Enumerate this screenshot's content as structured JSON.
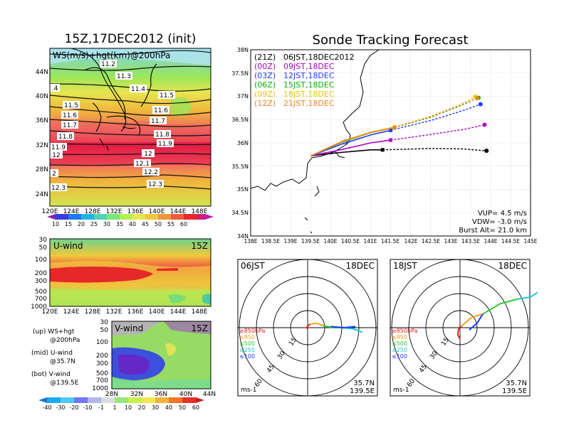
{
  "left": {
    "title": "15Z,17DEC2012 (init)",
    "map": {
      "label": "WS(m/s)+hgt(km)@200hPa",
      "lat_ticks": [
        "44N",
        "40N",
        "36N",
        "32N",
        "28N",
        "24N"
      ],
      "lon_ticks": [
        "120E",
        "124E",
        "128E",
        "132E",
        "136E",
        "140E",
        "144E",
        "148E"
      ],
      "contour_labels": [
        "11.2",
        "11.3",
        "11.4",
        "11.5",
        "11.5",
        "11.6",
        "11.6",
        "11.7",
        "11.7",
        "11.8",
        "11.8",
        "11.9",
        "11.9",
        "12",
        "12",
        "12.1",
        "12.2",
        "12.3",
        "12.3",
        "2",
        ".4"
      ]
    },
    "ws_colorbar": [
      "10",
      "15",
      "20",
      "25",
      "30",
      "35",
      "40",
      "45",
      "50",
      "55",
      "60"
    ],
    "uwind": {
      "label": "U-wind",
      "time": "15Z",
      "y_ticks": [
        "30",
        "50",
        "100",
        "200",
        "300",
        "500",
        "700",
        "1000"
      ],
      "x_ticks": [
        "120E",
        "124E",
        "128E",
        "132E",
        "136E",
        "140E",
        "144E",
        "148E"
      ]
    },
    "vwind": {
      "label": "V-wind",
      "time": "15Z",
      "y_ticks": [
        "30",
        "50",
        "100",
        "200",
        "300",
        "500",
        "700",
        "1000"
      ],
      "x_ticks": [
        "28N",
        "32N",
        "36N",
        "40N",
        "44N"
      ]
    },
    "legend": {
      "up1": "(up) WS+hgt",
      "up2": "@200hPa",
      "mid1": "(mid) U-wind",
      "mid2": "@35.7N",
      "bot1": "(bot) V-wind",
      "bot2": "@139.5E"
    },
    "wind_colorbar": [
      "-40",
      "-30",
      "-20",
      "-10",
      "-1",
      "1",
      "10",
      "20",
      "30",
      "40",
      "50",
      "60"
    ]
  },
  "right": {
    "title": "Sonde Tracking Forecast",
    "track": {
      "y_ticks": [
        "38N",
        "37.5N",
        "37N",
        "36.5N",
        "36N",
        "35.5N",
        "35N",
        "34.5N",
        "34N"
      ],
      "x_ticks": [
        "138E",
        "138.5E",
        "139E",
        "139.5E",
        "140E",
        "140.5E",
        "141E",
        "141.5E",
        "142E",
        "142.5E",
        "143E",
        "143.5E",
        "144E",
        "144.5E",
        "145E"
      ],
      "legend": [
        {
          "code": "(21Z)",
          "time": "06JST,18DEC2012",
          "color": "#000000"
        },
        {
          "code": "(00Z)",
          "time": "09JST,18DEC",
          "color": "#b000c8"
        },
        {
          "code": "(03Z)",
          "time": "12JST,18DEC",
          "color": "#1e3cff"
        },
        {
          "code": "(06Z)",
          "time": "15JST,18DEC",
          "color": "#00b400"
        },
        {
          "code": "(09Z)",
          "time": "18JST,18DEC",
          "color": "#e6c800"
        },
        {
          "code": "(12Z)",
          "time": "21JST,18DEC",
          "color": "#f08228"
        }
      ],
      "vup": "VUP=  4.5 m/s",
      "vdw": "VDW= -3.0 m/s",
      "burst": "Burst Alt= 21.0 km"
    },
    "hodo1": {
      "time": "06JST",
      "date": "18DEC",
      "rings": [
        "15",
        "30",
        "45",
        "60"
      ],
      "levels": [
        "≥850hPa",
        "≤850",
        "≤500",
        "≤250",
        "≤100"
      ],
      "unit": "ms-1",
      "lat": "35.7N",
      "lon": "139.5E"
    },
    "hodo2": {
      "time": "18JST",
      "date": "18DEC",
      "rings": [
        "15",
        "30",
        "45",
        "60"
      ],
      "levels": [
        "≥850hPa",
        "≤850",
        "≤500",
        "≤250",
        "≤100"
      ],
      "unit": "ms-1",
      "lat": "35.7N",
      "lon": "139.5E"
    }
  },
  "chart_data": [
    {
      "type": "heatmap",
      "title": "WS(m/s)+hgt(km)@200hPa",
      "xlim": [
        120,
        150
      ],
      "ylim": [
        21,
        47
      ],
      "contour_levels_km": [
        11.2,
        11.3,
        11.4,
        11.5,
        11.6,
        11.7,
        11.8,
        11.9,
        12.0,
        12.1,
        12.2,
        12.3
      ],
      "colorbar": [
        10,
        15,
        20,
        25,
        30,
        35,
        40,
        45,
        50,
        55,
        60
      ]
    },
    {
      "type": "heatmap",
      "title": "U-wind",
      "xlim": [
        120,
        150
      ],
      "ylevels_hPa": [
        30,
        50,
        100,
        200,
        300,
        500,
        700,
        1000
      ],
      "colorbar": [
        -40,
        -30,
        -20,
        -10,
        -1,
        1,
        10,
        20,
        30,
        40,
        50,
        60
      ]
    },
    {
      "type": "heatmap",
      "title": "V-wind",
      "xlim": [
        28,
        44
      ],
      "ylevels_hPa": [
        30,
        50,
        100,
        200,
        300,
        500,
        700,
        1000
      ]
    },
    {
      "type": "line",
      "title": "Sonde Tracking Forecast",
      "xlim": [
        138,
        145
      ],
      "ylim": [
        34,
        38
      ],
      "series": [
        {
          "name": "(21Z) 06JST,18DEC2012",
          "x": [
            139.5,
            140.2,
            141.0,
            141.3,
            142.5,
            143.3,
            143.9
          ],
          "y": [
            35.72,
            35.79,
            35.85,
            35.85,
            35.88,
            35.87,
            35.83
          ]
        },
        {
          "name": "(00Z) 09JST,18DEC",
          "x": [
            139.5,
            140.3,
            141.0,
            141.5,
            142.5,
            143.4,
            143.85
          ],
          "y": [
            35.72,
            35.86,
            36.0,
            36.06,
            36.18,
            36.3,
            36.39
          ]
        },
        {
          "name": "(03Z) 12JST,18DEC",
          "x": [
            139.5,
            140.3,
            141.0,
            141.5,
            142.5,
            143.3,
            143.75
          ],
          "y": [
            35.72,
            35.98,
            36.17,
            36.27,
            36.48,
            36.69,
            36.83
          ]
        },
        {
          "name": "(06Z) 15JST,18DEC",
          "x": [
            139.5,
            140.3,
            141.0,
            141.6,
            142.5,
            143.2,
            143.7
          ],
          "y": [
            35.72,
            36.02,
            36.22,
            36.33,
            36.55,
            36.78,
            36.97
          ]
        },
        {
          "name": "(09Z) 18JST,18DEC",
          "x": [
            139.5,
            140.3,
            141.0,
            141.6,
            142.5,
            143.2,
            143.62
          ],
          "y": [
            35.72,
            36.04,
            36.23,
            36.34,
            36.57,
            36.8,
            36.99
          ]
        },
        {
          "name": "(12Z) 21JST,18DEC",
          "x": [
            139.5,
            140.3,
            141.0,
            141.6,
            142.5,
            143.2,
            143.67
          ],
          "y": [
            35.72,
            36.03,
            36.22,
            36.33,
            36.56,
            36.79,
            36.96
          ]
        }
      ]
    },
    {
      "type": "line",
      "title": "06JST 18DEC",
      "rings_ms": [
        15,
        30,
        45,
        60
      ],
      "segments": [
        {
          "name": "≥850hPa",
          "color": "#e61e1e",
          "u": [
            0,
            -1,
            0.5,
            2
          ],
          "v": [
            -1,
            0,
            2,
            3
          ]
        },
        {
          "name": "≤850",
          "color": "#f0a01e",
          "u": [
            2,
            8,
            13
          ],
          "v": [
            3,
            4,
            2
          ]
        },
        {
          "name": "≤500",
          "color": "#32c832",
          "u": [
            13,
            22,
            30
          ],
          "v": [
            2,
            0,
            0
          ]
        },
        {
          "name": "≤250",
          "color": "#1ec8c8",
          "u": [
            30,
            40,
            48
          ],
          "v": [
            0,
            -1,
            -4
          ]
        },
        {
          "name": "≤100",
          "color": "#1e3cff",
          "u": [
            20,
            32,
            42
          ],
          "v": [
            1,
            0,
            1
          ]
        }
      ]
    },
    {
      "type": "line",
      "title": "18JST 18DEC",
      "rings_ms": [
        15,
        30,
        45,
        60
      ],
      "segments": [
        {
          "name": "≥850hPa",
          "color": "#e61e1e",
          "u": [
            0,
            -2,
            -1,
            1
          ],
          "v": [
            -10,
            -6,
            0,
            1
          ]
        },
        {
          "name": "≤850",
          "color": "#f0a01e",
          "u": [
            1,
            10,
            20
          ],
          "v": [
            1,
            9,
            12
          ]
        },
        {
          "name": "≤500",
          "color": "#32c832",
          "u": [
            20,
            35,
            50
          ],
          "v": [
            12,
            21,
            25
          ]
        },
        {
          "name": "≤250",
          "color": "#1ec8c8",
          "u": [
            50,
            62,
            68
          ],
          "v": [
            25,
            27,
            31
          ]
        },
        {
          "name": "≤100",
          "color": "#1e3cff",
          "u": [
            8,
            15,
            20
          ],
          "v": [
            -2,
            4,
            12
          ]
        }
      ]
    }
  ]
}
